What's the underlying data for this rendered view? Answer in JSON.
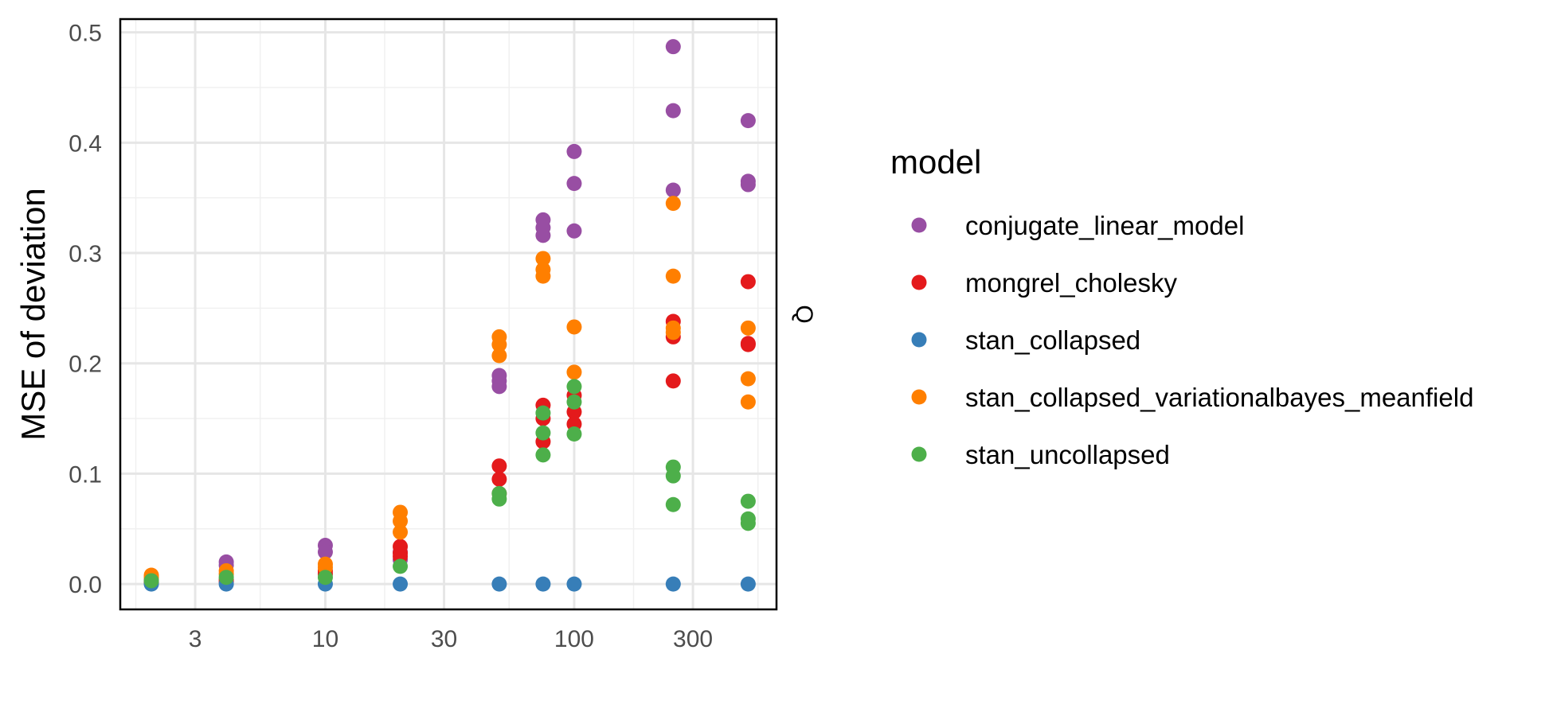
{
  "chart_data": {
    "type": "scatter",
    "title": "",
    "xlabel": "",
    "ylabel": "MSE of deviation",
    "x_scale": "log10",
    "xlim": [
      1.5,
      650
    ],
    "ylim": [
      -0.023,
      0.512
    ],
    "x_ticks": [
      3,
      10,
      30,
      100,
      300
    ],
    "x_tick_labels": [
      "3",
      "10",
      "30",
      "100",
      "300"
    ],
    "y_ticks": [
      0,
      0.1,
      0.2,
      0.3,
      0.4,
      0.5
    ],
    "y_tick_labels": [
      "0.0",
      "0.1",
      "0.2",
      "0.3",
      "0.4",
      "0.5"
    ],
    "grid": true,
    "legend": {
      "title": "model",
      "position": "right"
    },
    "facet_label": "Q",
    "series": [
      {
        "name": "conjugate_linear_model",
        "color": "#984EA3",
        "points": [
          [
            2,
            0.004
          ],
          [
            2,
            0.002
          ],
          [
            4,
            0.02
          ],
          [
            4,
            0.017
          ],
          [
            10,
            0.035
          ],
          [
            10,
            0.029
          ],
          [
            20,
            0.029
          ],
          [
            20,
            0.022
          ],
          [
            50,
            0.189
          ],
          [
            50,
            0.184
          ],
          [
            50,
            0.179
          ],
          [
            75,
            0.33
          ],
          [
            75,
            0.323
          ],
          [
            75,
            0.316
          ],
          [
            100,
            0.392
          ],
          [
            100,
            0.363
          ],
          [
            100,
            0.32
          ],
          [
            250,
            0.487
          ],
          [
            250,
            0.429
          ],
          [
            250,
            0.357
          ],
          [
            500,
            0.42
          ],
          [
            500,
            0.365
          ],
          [
            500,
            0.362
          ]
        ]
      },
      {
        "name": "mongrel_cholesky",
        "color": "#E41A1C",
        "points": [
          [
            2,
            0.002
          ],
          [
            2,
            0.001
          ],
          [
            4,
            0.004
          ],
          [
            4,
            0.002
          ],
          [
            10,
            0.012
          ],
          [
            10,
            0.009
          ],
          [
            20,
            0.034
          ],
          [
            20,
            0.028
          ],
          [
            20,
            0.025
          ],
          [
            50,
            0.107
          ],
          [
            50,
            0.095
          ],
          [
            50,
            0.082
          ],
          [
            75,
            0.162
          ],
          [
            75,
            0.15
          ],
          [
            75,
            0.129
          ],
          [
            100,
            0.171
          ],
          [
            100,
            0.156
          ],
          [
            100,
            0.145
          ],
          [
            250,
            0.238
          ],
          [
            250,
            0.224
          ],
          [
            250,
            0.184
          ],
          [
            500,
            0.274
          ],
          [
            500,
            0.218
          ],
          [
            500,
            0.217
          ]
        ]
      },
      {
        "name": "stan_collapsed",
        "color": "#377EB8",
        "points": [
          [
            2,
            0.0
          ],
          [
            4,
            0.0
          ],
          [
            10,
            0.0
          ],
          [
            20,
            0.0
          ],
          [
            50,
            0.0
          ],
          [
            75,
            0.0
          ],
          [
            100,
            0.0
          ],
          [
            250,
            0.0
          ],
          [
            500,
            0.0
          ]
        ]
      },
      {
        "name": "stan_collapsed_variationalbayes_meanfield",
        "color": "#FF7F00",
        "points": [
          [
            2,
            0.008
          ],
          [
            2,
            0.006
          ],
          [
            4,
            0.012
          ],
          [
            4,
            0.009
          ],
          [
            10,
            0.018
          ],
          [
            10,
            0.015
          ],
          [
            20,
            0.065
          ],
          [
            20,
            0.057
          ],
          [
            20,
            0.047
          ],
          [
            50,
            0.224
          ],
          [
            50,
            0.217
          ],
          [
            50,
            0.207
          ],
          [
            75,
            0.295
          ],
          [
            75,
            0.285
          ],
          [
            75,
            0.279
          ],
          [
            100,
            0.233
          ],
          [
            100,
            0.192
          ],
          [
            250,
            0.345
          ],
          [
            250,
            0.279
          ],
          [
            250,
            0.232
          ],
          [
            250,
            0.228
          ],
          [
            500,
            0.232
          ],
          [
            500,
            0.186
          ],
          [
            500,
            0.165
          ]
        ]
      },
      {
        "name": "stan_uncollapsed",
        "color": "#4DAF4A",
        "points": [
          [
            2,
            0.003
          ],
          [
            4,
            0.006
          ],
          [
            10,
            0.006
          ],
          [
            20,
            0.016
          ],
          [
            50,
            0.082
          ],
          [
            50,
            0.077
          ],
          [
            75,
            0.155
          ],
          [
            75,
            0.137
          ],
          [
            75,
            0.117
          ],
          [
            100,
            0.179
          ],
          [
            100,
            0.165
          ],
          [
            100,
            0.136
          ],
          [
            250,
            0.106
          ],
          [
            250,
            0.098
          ],
          [
            250,
            0.072
          ],
          [
            500,
            0.075
          ],
          [
            500,
            0.059
          ],
          [
            500,
            0.055
          ]
        ]
      }
    ]
  }
}
